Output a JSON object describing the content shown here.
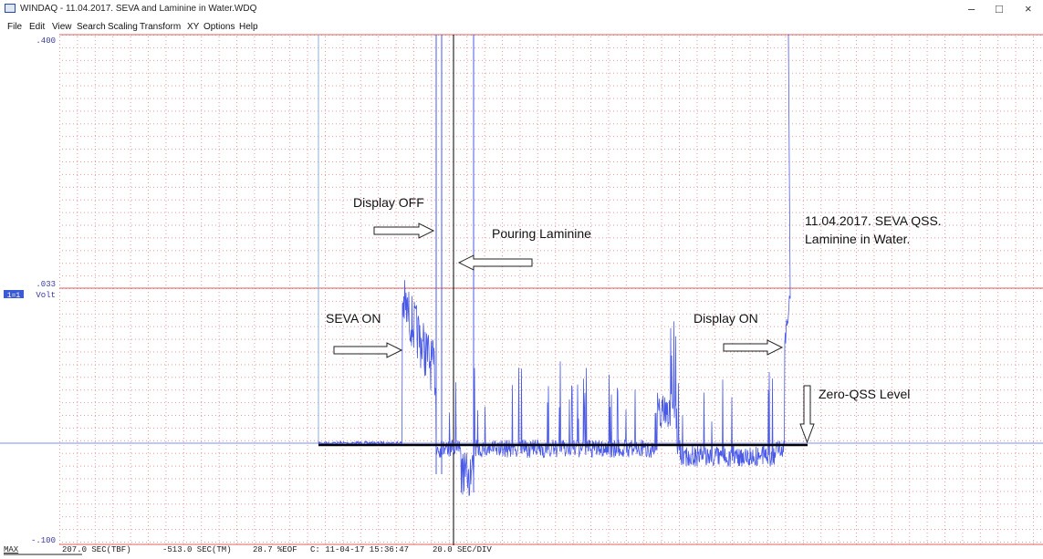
{
  "window": {
    "title": "WINDAQ - 11.04.2017. SEVA and Laminine in Water.WDQ"
  },
  "menu": [
    "File",
    "Edit",
    "View",
    "Search",
    "Scaling",
    "Transform",
    "XY",
    "Options",
    "Help"
  ],
  "axis": {
    "top": ".400",
    "middle": ".033",
    "bottom": "-.100",
    "channel": "1=1",
    "unit": "Volt"
  },
  "annotations": [
    "Display OFF",
    "Pouring Laminine",
    "11.04.2017. SEVA QSS.",
    "Laminine in Water.",
    "SEVA ON",
    "Display ON",
    "Zero-QSS Level"
  ],
  "status": {
    "mode": "MAX",
    "tbf": "207.0 SEC(TBF)",
    "tm": "-513.0 SEC(TM)",
    "eof": "28.7 %EOF",
    "time": "C: 11-04-17 15:36:47",
    "div": "20.0 SEC/DIV"
  }
}
